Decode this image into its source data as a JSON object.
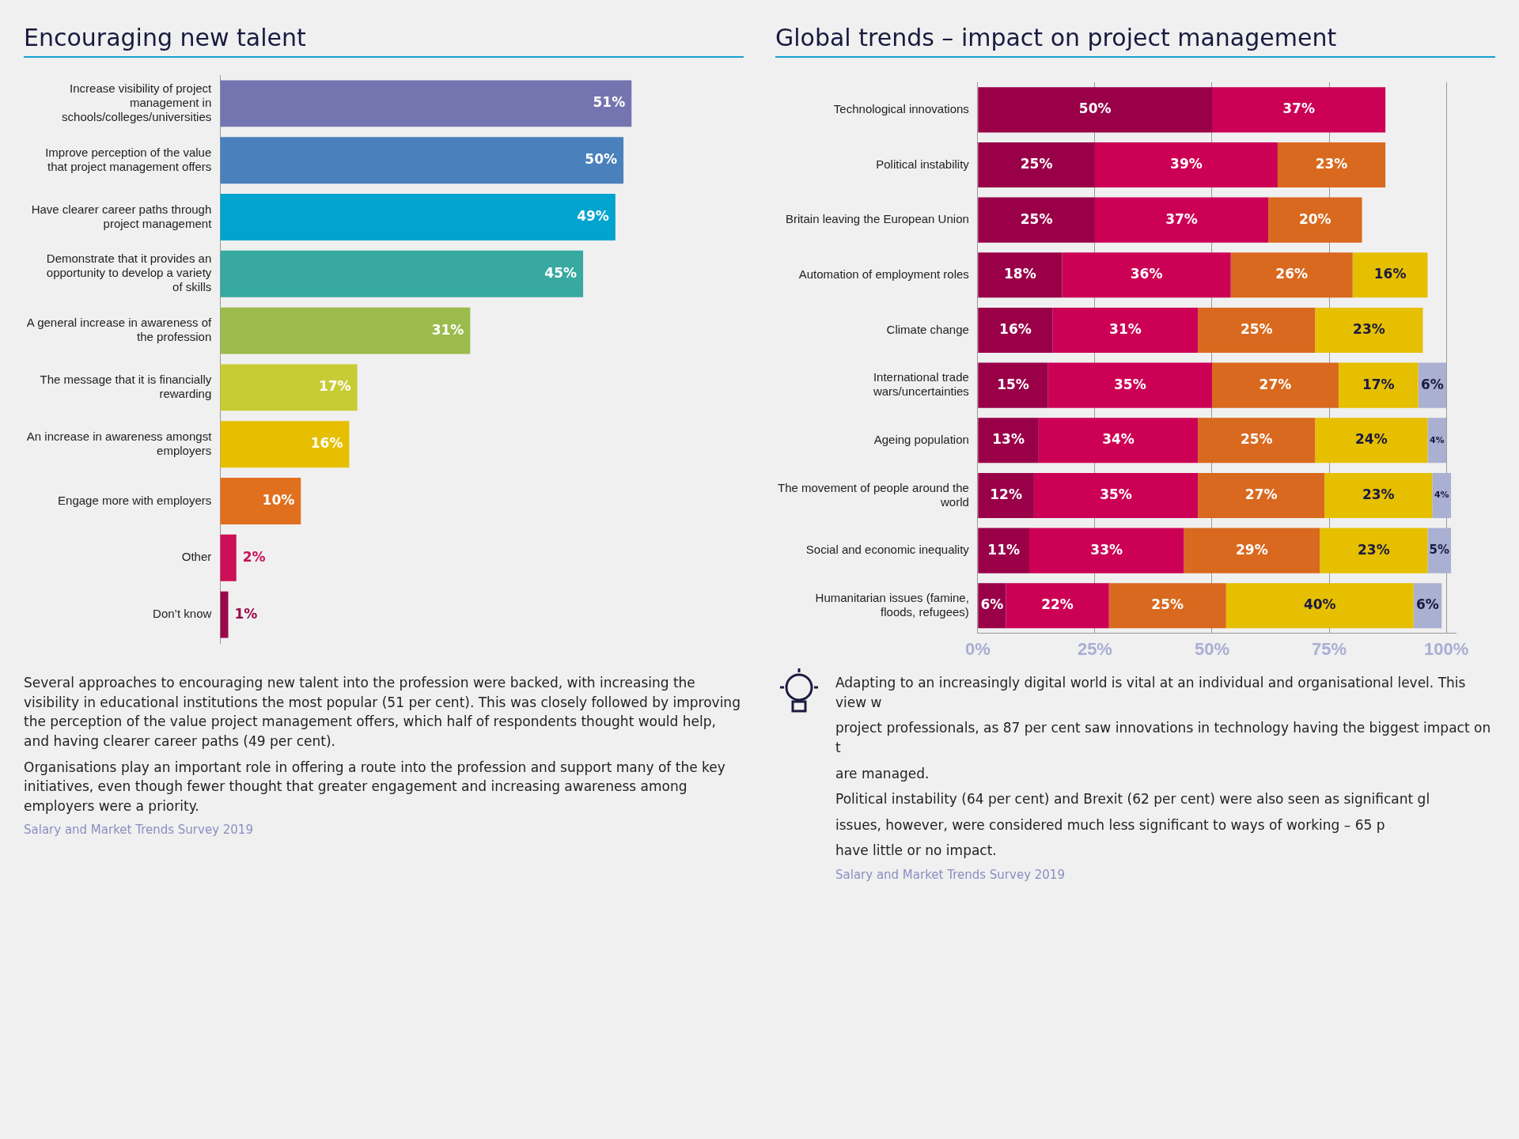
{
  "chart_data": [
    {
      "type": "bar",
      "title": "Encouraging new talent",
      "orientation": "horizontal",
      "tick_labels": "y",
      "categories": [
        "Increase visibility of project management in schools/colleges/universities",
        "Improve perception of the value that project management offers",
        "Have clearer career paths through project management",
        "Demonstrate that it provides an opportunity to develop a variety of skills",
        "A general increase in awareness of the profession",
        "The message that it is financially rewarding",
        "An increase in awareness amongst employers",
        "Engage more with employers",
        "Other",
        "Don’t know"
      ],
      "values": [
        51,
        50,
        49,
        45,
        31,
        17,
        16,
        10,
        2,
        1
      ],
      "value_labels": [
        "51%",
        "50%",
        "49%",
        "45%",
        "31%",
        "17%",
        "16%",
        "10%",
        "2%",
        "1%"
      ],
      "colors": [
        "#7474b0",
        "#4a80bc",
        "#00a4cf",
        "#37a9a0",
        "#9bbb4c",
        "#c8cc34",
        "#e6bf00",
        "#e0701e",
        "#cc0f57",
        "#9a0a4a"
      ],
      "annotations": [
        "Several approaches to encouraging new talent into the profession were backed, with increasing the visibility in educational institutions the most popular (51 per cent). This was closely followed by improving the perception of the value project management offers, which half of respondents thought would help, and having clearer career paths (49 per cent).",
        "Organisations play an important role in offering a route into the profession and support many of the key initiatives, even though fewer thought that greater engagement and increasing awareness among employers were a priority.",
        "Salary and Market Trends Survey 2019"
      ]
    },
    {
      "type": "bar",
      "title": "Global trends – impact on project management",
      "orientation": "horizontal",
      "stacked": true,
      "grid": "x",
      "categories": [
        "Technological innovations",
        "Political instability",
        "Britain leaving the European Union",
        "Automation of employment roles",
        "Climate change",
        "International trade wars/uncertainties",
        "Ageing population",
        "The movement of people around the world",
        "Social and economic inequality",
        "Humanitarian issues (famine, floods, refugees)"
      ],
      "xlim": [
        0,
        102
      ],
      "xticks": [
        {
          "value": 0,
          "label": "0%"
        },
        {
          "value": 25,
          "label": "25%"
        },
        {
          "value": 50,
          "label": "50%"
        },
        {
          "value": 75,
          "label": "75%"
        },
        {
          "value": 100,
          "label": "100%"
        }
      ],
      "series": [
        {
          "color": "#990048",
          "values": [
            50,
            25,
            25,
            18,
            16,
            15,
            13,
            12,
            11,
            6
          ],
          "value_labels": [
            "50%",
            "25%",
            "25%",
            "18%",
            "16%",
            "15%",
            "13%",
            "12%",
            "11%",
            "6%"
          ]
        },
        {
          "color": "#cc0055",
          "values": [
            37,
            39,
            37,
            36,
            31,
            35,
            34,
            35,
            33,
            22
          ],
          "value_labels": [
            "37%",
            "39%",
            "37%",
            "36%",
            "31%",
            "35%",
            "34%",
            "35%",
            "33%",
            "22%"
          ]
        },
        {
          "color": "#d9691e",
          "values": [
            null,
            23,
            20,
            26,
            25,
            27,
            25,
            27,
            29,
            25
          ],
          "value_labels": [
            null,
            "23%",
            "20%",
            "26%",
            "25%",
            "27%",
            "25%",
            "27%",
            "29%",
            "25%"
          ]
        },
        {
          "color": "#e6bf00",
          "values": [
            null,
            null,
            null,
            16,
            23,
            17,
            24,
            23,
            23,
            40
          ],
          "value_labels": [
            null,
            null,
            null,
            "16%",
            "23%",
            "17%",
            "24%",
            "23%",
            "23%",
            "40%"
          ]
        },
        {
          "color": "#a9b0d1",
          "values": [
            null,
            null,
            null,
            null,
            null,
            6,
            4,
            4,
            5,
            6
          ],
          "value_labels": [
            null,
            null,
            null,
            null,
            null,
            "6%",
            "4%",
            "4%",
            "5%",
            "6%"
          ]
        }
      ],
      "annotations": [
        "Adapting to an increasingly digital world is vital at an individual and organisational level. This view w",
        "project professionals, as 87 per cent saw innovations in technology having the biggest impact on t",
        "are managed.",
        "Political instability (64 per cent) and Brexit (62 per cent) were also seen as significant gl",
        "issues, however, were considered much less significant to ways of working – 65 p",
        "have little or no impact.",
        "Salary and Market Trends Survey 2019"
      ]
    }
  ]
}
